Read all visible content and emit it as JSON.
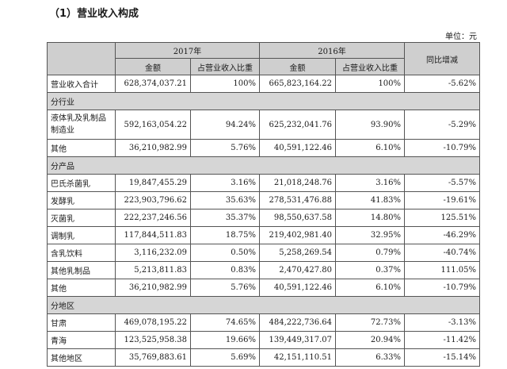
{
  "title": "（1）营业收入构成",
  "unit": "单位：元",
  "headers": {
    "year_2017": "2017年",
    "year_2016": "2016年",
    "amount": "金额",
    "share": "占营业收入比重",
    "yoy": "同比增减"
  },
  "total": {
    "label": "营业收入合计",
    "a2017": "628,374,037.21",
    "s2017": "100%",
    "a2016": "665,823,164.22",
    "s2016": "100%",
    "yoy": "-5.62%"
  },
  "sections": [
    {
      "label": "分行业",
      "rows": [
        {
          "label": "液体乳及乳制品制造业",
          "a2017": "592,163,054.22",
          "s2017": "94.24%",
          "a2016": "625,232,041.76",
          "s2016": "93.90%",
          "yoy": "-5.29%"
        },
        {
          "label": "其他",
          "a2017": "36,210,982.99",
          "s2017": "5.76%",
          "a2016": "40,591,122.46",
          "s2016": "6.10%",
          "yoy": "-10.79%"
        }
      ]
    },
    {
      "label": "分产品",
      "rows": [
        {
          "label": "巴氏杀菌乳",
          "a2017": "19,847,455.29",
          "s2017": "3.16%",
          "a2016": "21,018,248.76",
          "s2016": "3.16%",
          "yoy": "-5.57%"
        },
        {
          "label": "发酵乳",
          "a2017": "223,903,796.62",
          "s2017": "35.63%",
          "a2016": "278,531,476.88",
          "s2016": "41.83%",
          "yoy": "-19.61%"
        },
        {
          "label": "灭菌乳",
          "a2017": "222,237,246.56",
          "s2017": "35.37%",
          "a2016": "98,550,637.58",
          "s2016": "14.80%",
          "yoy": "125.51%"
        },
        {
          "label": "调制乳",
          "a2017": "117,844,511.83",
          "s2017": "18.75%",
          "a2016": "219,402,981.40",
          "s2016": "32.95%",
          "yoy": "-46.29%"
        },
        {
          "label": "含乳饮料",
          "a2017": "3,116,232.09",
          "s2017": "0.50%",
          "a2016": "5,258,269.54",
          "s2016": "0.79%",
          "yoy": "-40.74%"
        },
        {
          "label": "其他乳制品",
          "a2017": "5,213,811.83",
          "s2017": "0.83%",
          "a2016": "2,470,427.80",
          "s2016": "0.37%",
          "yoy": "111.05%"
        },
        {
          "label": "其他",
          "a2017": "36,210,982.99",
          "s2017": "5.76%",
          "a2016": "40,591,122.46",
          "s2016": "6.10%",
          "yoy": "-10.79%"
        }
      ]
    },
    {
      "label": "分地区",
      "rows": [
        {
          "label": "甘肃",
          "a2017": "469,078,195.22",
          "s2017": "74.65%",
          "a2016": "484,222,736.64",
          "s2016": "72.73%",
          "yoy": "-3.13%"
        },
        {
          "label": "青海",
          "a2017": "123,525,958.38",
          "s2017": "19.66%",
          "a2016": "139,449,317.07",
          "s2016": "20.94%",
          "yoy": "-11.42%"
        },
        {
          "label": "其他地区",
          "a2017": "35,769,883.61",
          "s2017": "5.69%",
          "a2016": "42,151,110.51",
          "s2016": "6.33%",
          "yoy": "-15.14%"
        }
      ]
    }
  ]
}
